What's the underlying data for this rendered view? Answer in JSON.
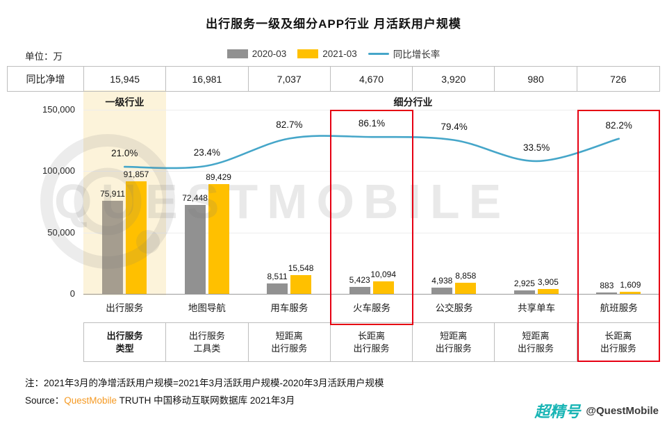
{
  "header": {
    "title": "出行服务一级及细分APP行业 月活跃用户规模",
    "unit_label": "单位：万"
  },
  "legend": [
    {
      "label": "2020-03",
      "swatch": "bar",
      "color": "#919191"
    },
    {
      "label": "2021-03",
      "swatch": "bar",
      "color": "#FFC000"
    },
    {
      "label": "同比增长率",
      "swatch": "line",
      "color": "#45A6C9"
    }
  ],
  "net_increase": {
    "row_label": "同比净增",
    "values": [
      "15,945",
      "16,981",
      "7,037",
      "4,670",
      "3,920",
      "980",
      "726"
    ]
  },
  "sections": {
    "primary": "一级行业",
    "sub": "细分行业"
  },
  "chart_data": {
    "type": "bar",
    "categories": [
      "出行服务",
      "地图导航",
      "用车服务",
      "火车服务",
      "公交服务",
      "共享单车",
      "航班服务"
    ],
    "series": [
      {
        "name": "2020-03",
        "values": [
          75911,
          72448,
          8511,
          5423,
          4938,
          2925,
          883
        ],
        "labels": [
          "75,911",
          "72,448",
          "8,511",
          "5,423",
          "4,938",
          "2,925",
          "883"
        ]
      },
      {
        "name": "2021-03",
        "values": [
          91857,
          89429,
          15548,
          10094,
          8858,
          3905,
          1609
        ],
        "labels": [
          "91,857",
          "89,429",
          "15,548",
          "10,094",
          "8,858",
          "3,905",
          "1,609"
        ]
      }
    ],
    "line": {
      "name": "同比增长率",
      "values_pct": [
        21.0,
        23.4,
        82.7,
        86.1,
        79.4,
        33.5,
        82.2
      ],
      "labels": [
        "21.0%",
        "23.4%",
        "82.7%",
        "86.1%",
        "79.4%",
        "33.5%",
        "82.2%"
      ]
    },
    "net_increase_values": [
      15945,
      16981,
      7037,
      4670,
      3920,
      980,
      726
    ],
    "y_ticks": [
      "150,000",
      "100,000",
      "50,000",
      "0"
    ],
    "ylim": [
      0,
      150000
    ],
    "red_boxed_categories": [
      "火车服务",
      "航班服务"
    ],
    "legend_position": "top"
  },
  "type_table": {
    "cells": [
      "出行服务\n类型",
      "出行服务\n工具类",
      "短距离\n出行服务",
      "长距离\n出行服务",
      "短距离\n出行服务",
      "短距离\n出行服务",
      "长距离\n出行服务"
    ]
  },
  "footer": {
    "note": "注：2021年3月的净增活跃用户规模=2021年3月活跃用户规模-2020年3月活跃用户规模",
    "source_prefix": "Source：",
    "source_brand": "QuestMobile",
    "source_suffix": " TRUTH 中国移动互联网数据库 2021年3月"
  },
  "watermarks": {
    "big_text": "QUESTMOBILE",
    "badge_script": "超精号",
    "badge_handle": "@QuestMobile"
  },
  "colors": {
    "bar_2020": "#919191",
    "bar_2020_primary": "#a59d8f",
    "bar_2021": "#FFC000",
    "line": "#45A6C9",
    "red_box": "#E60012",
    "highlight_bg": "#fcf3da",
    "brand_orange": "#F59A23",
    "badge_teal": "#19b5b5"
  }
}
